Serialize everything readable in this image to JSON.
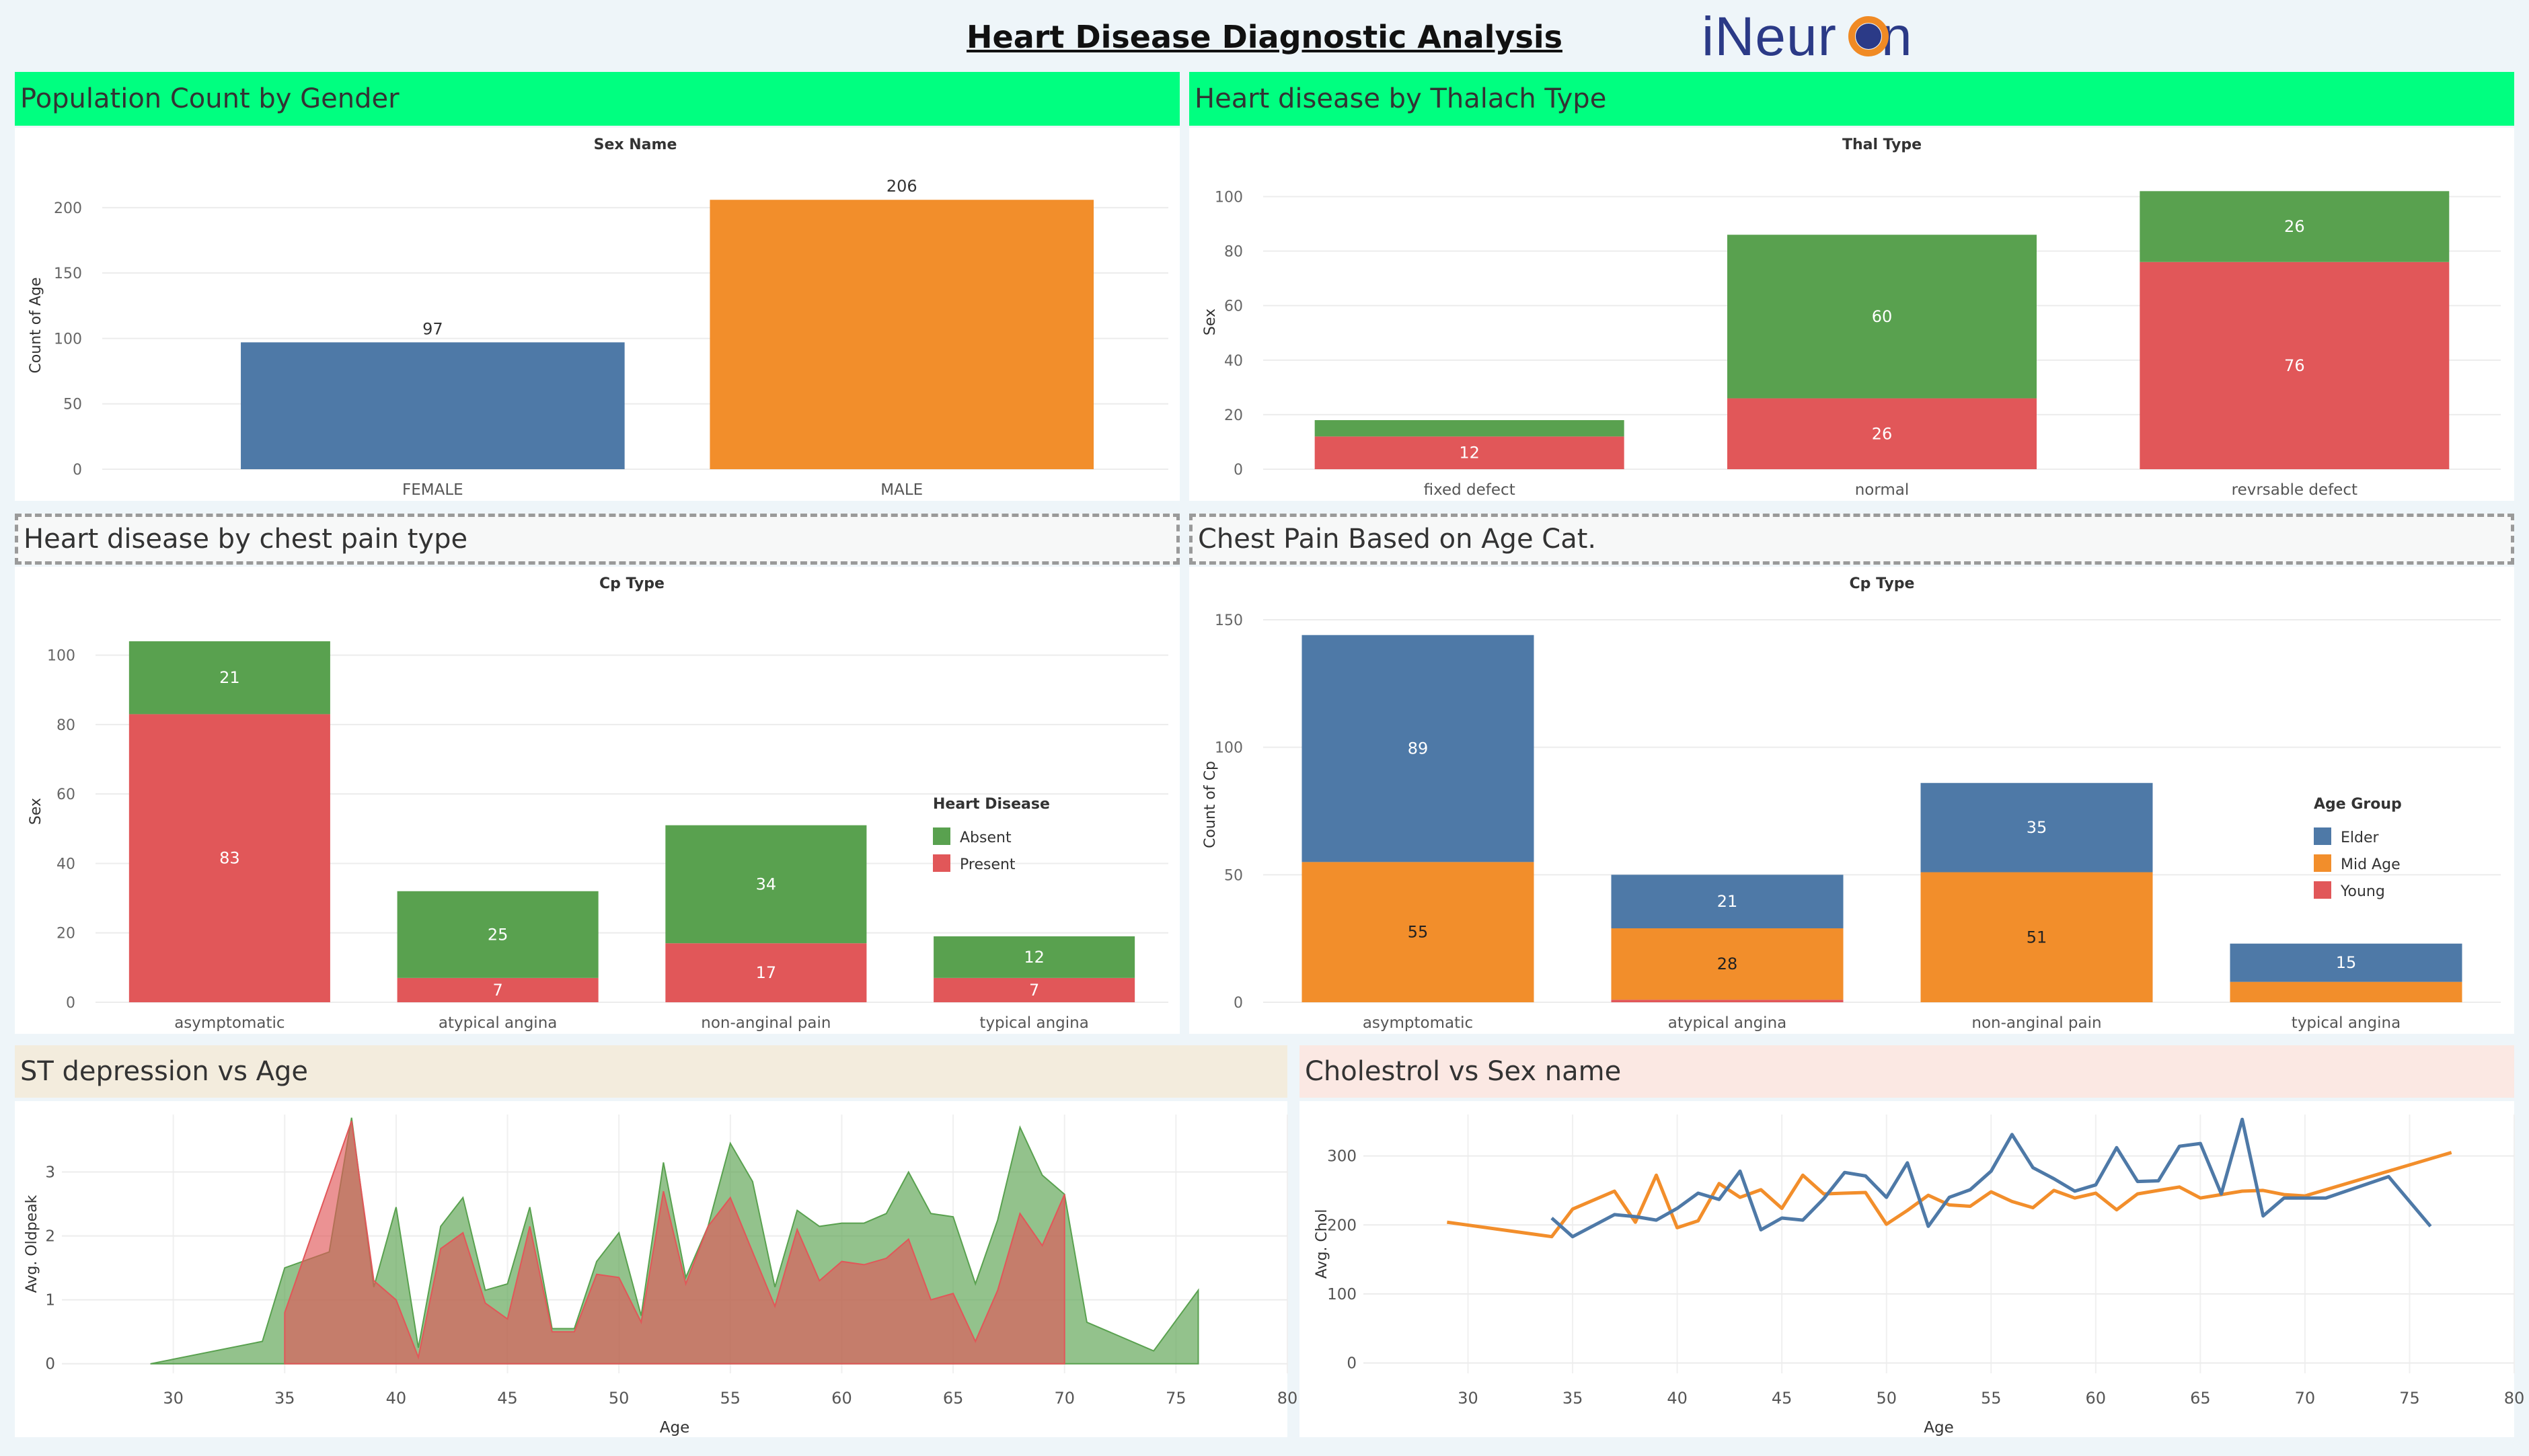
{
  "dashboard": {
    "title": "Heart Disease Diagnostic Analysis",
    "logo_text": "iNeur",
    "logo_text_end": "n"
  },
  "colors": {
    "blue": "#4e79a7",
    "orange": "#f28e2b",
    "green": "#59a14f",
    "red": "#e15759"
  },
  "panels": {
    "gender": "Population Count by Gender",
    "thal": "Heart disease by Thalach Type",
    "chest": "Heart disease by chest pain type",
    "agecat": "Chest Pain Based on Age Cat.",
    "st": "ST depression vs Age",
    "chol": "Cholestrol vs Sex name"
  },
  "chart_data": [
    {
      "id": "gender",
      "type": "bar",
      "title": "Sex Name",
      "xlabel": "",
      "ylabel": "Count of Age",
      "categories": [
        "FEMALE",
        "MALE"
      ],
      "values": [
        97,
        206
      ],
      "bar_colors": [
        "#4e79a7",
        "#f28e2b"
      ],
      "ylim": [
        0,
        220
      ],
      "yticks": [
        0,
        50,
        100,
        150,
        200
      ],
      "grid": true
    },
    {
      "id": "thal",
      "type": "bar",
      "stacked": true,
      "title": "Thal Type",
      "xlabel": "",
      "ylabel": "Sex",
      "categories": [
        "fixed defect",
        "normal",
        "revrsable defect"
      ],
      "series": [
        {
          "values": [
            12,
            26,
            76
          ],
          "color": "#e15759",
          "labels": [
            "12",
            "26",
            "76"
          ]
        },
        {
          "values": [
            6,
            60,
            26
          ],
          "color": "#59a14f",
          "labels": [
            "",
            "60",
            "26"
          ]
        }
      ],
      "ylim": [
        0,
        108
      ],
      "yticks": [
        0,
        20,
        40,
        60,
        80,
        100
      ],
      "grid": true
    },
    {
      "id": "chest",
      "type": "bar",
      "stacked": true,
      "title": "Cp Type",
      "xlabel": "",
      "ylabel": "Sex",
      "categories": [
        "asymptomatic",
        "atypical angina",
        "non-anginal pain",
        "typical angina"
      ],
      "series": [
        {
          "name": "Present",
          "values": [
            83,
            7,
            17,
            7
          ],
          "color": "#e15759",
          "labels": [
            "83",
            "7",
            "17",
            "7"
          ]
        },
        {
          "name": "Absent",
          "values": [
            21,
            25,
            34,
            12
          ],
          "color": "#59a14f",
          "labels": [
            "21",
            "25",
            "34",
            "12"
          ]
        }
      ],
      "legend": {
        "title": "Heart Disease",
        "position": "right",
        "entries": [
          "Absent",
          "Present"
        ]
      },
      "ylim": [
        0,
        110
      ],
      "yticks": [
        0,
        20,
        40,
        60,
        80,
        100
      ],
      "grid": true
    },
    {
      "id": "agecat",
      "type": "bar",
      "stacked": true,
      "title": "Cp Type",
      "xlabel": "",
      "ylabel": "Count of Cp",
      "categories": [
        "asymptomatic",
        "atypical angina",
        "non-anginal pain",
        "typical angina"
      ],
      "series": [
        {
          "name": "Young",
          "values": [
            0,
            1,
            0,
            0
          ],
          "color": "#e15759",
          "labels": [
            "",
            "",
            "",
            ""
          ]
        },
        {
          "name": "Mid Age",
          "values": [
            55,
            28,
            51,
            8
          ],
          "color": "#f28e2b",
          "labels": [
            "55",
            "28",
            "51",
            ""
          ]
        },
        {
          "name": "Elder",
          "values": [
            89,
            21,
            35,
            15
          ],
          "color": "#4e79a7",
          "labels": [
            "89",
            "21",
            "35",
            "15"
          ]
        }
      ],
      "legend": {
        "title": "Age Group",
        "position": "right",
        "entries": [
          "Elder",
          "Mid Age",
          "Young"
        ]
      },
      "ylim": [
        0,
        155
      ],
      "yticks": [
        0,
        50,
        100,
        150
      ],
      "grid": true
    },
    {
      "id": "st",
      "type": "area",
      "title": "",
      "xlabel": "Age",
      "ylabel": "Avg. Oldpeak",
      "xlim": [
        25,
        80
      ],
      "ylim": [
        -0.15,
        3.9
      ],
      "xticks": [
        30,
        35,
        40,
        45,
        50,
        55,
        60,
        65,
        70,
        75,
        80
      ],
      "yticks": [
        0,
        1,
        2,
        3
      ],
      "series": [
        {
          "color": "#59a14f",
          "x": [
            29,
            34,
            35,
            37,
            38,
            39,
            40,
            41,
            42,
            43,
            44,
            45,
            46,
            47,
            48,
            49,
            50,
            51,
            52,
            53,
            54,
            55,
            56,
            57,
            58,
            59,
            60,
            61,
            62,
            63,
            64,
            65,
            66,
            67,
            68,
            69,
            70,
            71,
            74,
            76
          ],
          "y": [
            0,
            0.35,
            1.5,
            1.75,
            3.85,
            1.2,
            2.45,
            0.25,
            2.15,
            2.6,
            1.15,
            1.25,
            2.45,
            0.55,
            0.55,
            1.6,
            2.05,
            0.75,
            3.15,
            1.35,
            2.15,
            3.45,
            2.85,
            1.2,
            2.4,
            2.15,
            2.2,
            2.2,
            2.35,
            3.0,
            2.35,
            2.3,
            1.25,
            2.25,
            3.7,
            2.95,
            2.65,
            0.65,
            0.2,
            1.15
          ]
        },
        {
          "color": "#e15759",
          "x": [
            35,
            38,
            39,
            40,
            41,
            42,
            43,
            44,
            45,
            46,
            47,
            48,
            49,
            50,
            51,
            52,
            53,
            54,
            55,
            56,
            57,
            58,
            59,
            60,
            61,
            62,
            63,
            64,
            65,
            66,
            67,
            68,
            69,
            70
          ],
          "y": [
            0.8,
            3.8,
            1.3,
            1.0,
            0.1,
            1.8,
            2.05,
            0.95,
            0.7,
            2.15,
            0.5,
            0.5,
            1.4,
            1.35,
            0.65,
            2.7,
            1.25,
            2.15,
            2.6,
            1.75,
            0.9,
            2.1,
            1.3,
            1.6,
            1.55,
            1.65,
            1.95,
            1.0,
            1.1,
            0.35,
            1.15,
            2.35,
            1.85,
            2.65
          ]
        }
      ],
      "grid": true
    },
    {
      "id": "chol",
      "type": "line",
      "title": "",
      "xlabel": "Age",
      "ylabel": "Avg. Chol",
      "xlim": [
        25,
        80
      ],
      "ylim": [
        -15,
        360
      ],
      "xticks": [
        30,
        35,
        40,
        45,
        50,
        55,
        60,
        65,
        70,
        75,
        80
      ],
      "yticks": [
        0,
        100,
        200,
        300
      ],
      "series": [
        {
          "color": "#f28e2b",
          "x": [
            29,
            34,
            35,
            37,
            38,
            39,
            40,
            41,
            42,
            43,
            44,
            45,
            46,
            47,
            48,
            49,
            50,
            51,
            52,
            53,
            54,
            55,
            56,
            57,
            58,
            59,
            60,
            61,
            62,
            63,
            64,
            65,
            66,
            67,
            68,
            69,
            70,
            77
          ],
          "y": [
            204,
            183,
            223,
            249,
            204,
            272,
            196,
            206,
            260,
            240,
            251,
            224,
            272,
            245,
            246,
            247,
            201,
            221,
            243,
            229,
            227,
            248,
            234,
            225,
            250,
            239,
            246,
            222,
            245,
            250,
            255,
            239,
            244,
            249,
            250,
            244,
            242,
            305
          ]
        },
        {
          "color": "#4e79a7",
          "x": [
            34,
            35,
            37,
            38,
            39,
            40,
            41,
            42,
            43,
            44,
            45,
            46,
            47,
            48,
            49,
            50,
            51,
            52,
            53,
            54,
            55,
            56,
            57,
            58,
            59,
            60,
            61,
            62,
            63,
            64,
            65,
            66,
            67,
            68,
            69,
            70,
            71,
            74,
            76
          ],
          "y": [
            210,
            183,
            215,
            212,
            207,
            224,
            246,
            237,
            278,
            193,
            210,
            207,
            238,
            276,
            271,
            240,
            290,
            198,
            240,
            251,
            278,
            331,
            283,
            267,
            249,
            258,
            312,
            263,
            264,
            314,
            318,
            245,
            353,
            213,
            239,
            239,
            239,
            270,
            198
          ]
        }
      ],
      "grid": true
    }
  ]
}
